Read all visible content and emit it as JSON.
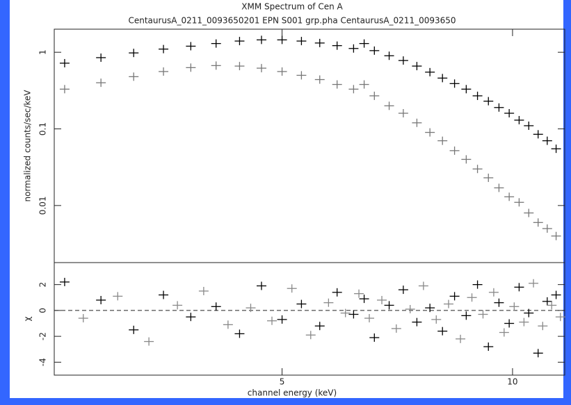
{
  "chart_data": [
    {
      "type": "scatter",
      "title": "XMM Spectrum of Cen A",
      "subtitle": "CentaurusA_0211_0093650201 EPN S001 grp.pha CentaurusA_0211_0093650",
      "ylabel": "normalized counts/sec/keV",
      "log_x": true,
      "log_y": true,
      "xlim": [
        2.52,
        11.7
      ],
      "ylim": [
        0.0018,
        2
      ],
      "yticks": [
        1,
        0.1,
        0.01
      ],
      "series": [
        {
          "color": "#000000",
          "x": [
            2.6,
            2.9,
            3.2,
            3.5,
            3.8,
            4.1,
            4.4,
            4.7,
            5.0,
            5.3,
            5.6,
            5.9,
            6.2,
            6.4,
            6.6,
            6.9,
            7.2,
            7.5,
            7.8,
            8.1,
            8.4,
            8.7,
            9.0,
            9.3,
            9.6,
            9.9,
            10.2,
            10.5,
            10.8,
            11.1,
            11.4
          ],
          "values": [
            0.72,
            0.85,
            0.98,
            1.1,
            1.2,
            1.3,
            1.4,
            1.45,
            1.45,
            1.4,
            1.32,
            1.22,
            1.12,
            1.3,
            1.05,
            0.9,
            0.78,
            0.66,
            0.55,
            0.46,
            0.39,
            0.33,
            0.27,
            0.23,
            0.19,
            0.16,
            0.13,
            0.11,
            0.085,
            0.07,
            0.055
          ]
        },
        {
          "color": "#777777",
          "x": [
            2.6,
            2.9,
            3.2,
            3.5,
            3.8,
            4.1,
            4.4,
            4.7,
            5.0,
            5.3,
            5.6,
            5.9,
            6.2,
            6.4,
            6.6,
            6.9,
            7.2,
            7.5,
            7.8,
            8.1,
            8.4,
            8.7,
            9.0,
            9.3,
            9.6,
            9.9,
            10.2,
            10.5,
            10.8,
            11.1,
            11.4
          ],
          "values": [
            0.33,
            0.4,
            0.48,
            0.56,
            0.63,
            0.67,
            0.66,
            0.62,
            0.56,
            0.5,
            0.44,
            0.38,
            0.33,
            0.38,
            0.27,
            0.2,
            0.16,
            0.12,
            0.09,
            0.07,
            0.052,
            0.04,
            0.03,
            0.023,
            0.017,
            0.013,
            0.011,
            0.008,
            0.006,
            0.005,
            0.004
          ]
        }
      ]
    },
    {
      "type": "scatter",
      "ylabel": "χ",
      "xlabel": "channel energy (keV)",
      "log_x": true,
      "xlim": [
        2.52,
        11.7
      ],
      "xticks": [
        5,
        10
      ],
      "ylim": [
        -5,
        3.7
      ],
      "yticks": [
        2,
        0,
        -2,
        -4
      ],
      "series": [
        {
          "color": "#000000",
          "x": [
            2.6,
            2.9,
            3.2,
            3.5,
            3.8,
            4.1,
            4.4,
            4.7,
            5.0,
            5.3,
            5.6,
            5.9,
            6.2,
            6.4,
            6.6,
            6.9,
            7.2,
            7.5,
            7.8,
            8.1,
            8.4,
            8.7,
            9.0,
            9.3,
            9.6,
            9.9,
            10.2,
            10.5,
            10.8,
            11.1,
            11.4
          ],
          "values": [
            2.2,
            0.8,
            -1.5,
            1.2,
            -0.5,
            0.3,
            -1.8,
            1.9,
            -0.7,
            0.5,
            -1.2,
            1.4,
            -0.3,
            0.9,
            -2.1,
            0.4,
            1.6,
            -0.9,
            0.2,
            -1.6,
            1.1,
            -0.4,
            2.0,
            -2.8,
            0.6,
            -1.0,
            1.8,
            -0.2,
            -3.3,
            0.7,
            1.2
          ]
        },
        {
          "color": "#888888",
          "x": [
            2.75,
            3.05,
            3.35,
            3.65,
            3.95,
            4.25,
            4.55,
            4.85,
            5.15,
            5.45,
            5.75,
            6.05,
            6.3,
            6.5,
            6.75,
            7.05,
            7.35,
            7.65,
            7.95,
            8.25,
            8.55,
            8.85,
            9.15,
            9.45,
            9.75,
            10.05,
            10.35,
            10.65,
            10.95,
            11.25,
            11.55
          ],
          "values": [
            -0.6,
            1.1,
            -2.4,
            0.4,
            1.5,
            -1.1,
            0.2,
            -0.8,
            1.7,
            -1.9,
            0.6,
            -0.2,
            1.3,
            -0.6,
            0.8,
            -1.4,
            0.1,
            1.9,
            -0.7,
            0.5,
            -2.2,
            1.0,
            -0.3,
            1.4,
            -1.7,
            0.3,
            -0.9,
            2.1,
            -1.2,
            0.4,
            -0.5
          ]
        }
      ]
    }
  ]
}
